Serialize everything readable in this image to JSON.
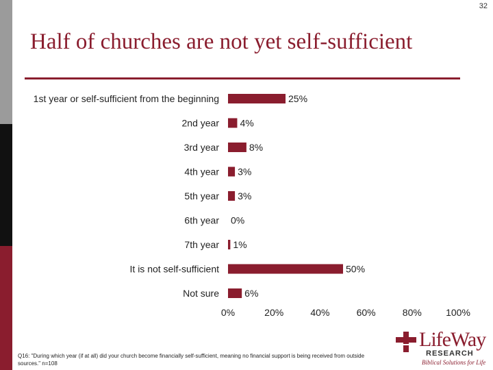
{
  "page_number": "32",
  "title": "Half of churches are not yet self-sufficient",
  "chart_data": {
    "type": "bar",
    "orientation": "horizontal",
    "title": "Half of churches are not yet self-sufficient",
    "categories": [
      "1st year or self-sufficient from the beginning",
      "2nd year",
      "3rd year",
      "4th year",
      "5th year",
      "6th year",
      "7th year",
      "It is not self-sufficient",
      "Not sure"
    ],
    "values": [
      25,
      4,
      8,
      3,
      3,
      0,
      1,
      50,
      6
    ],
    "value_labels": [
      "25%",
      "4%",
      "8%",
      "3%",
      "3%",
      "0%",
      "1%",
      "50%",
      "6%"
    ],
    "xlim": [
      0,
      100
    ],
    "x_ticks": [
      "0%",
      "20%",
      "40%",
      "60%",
      "80%",
      "100%"
    ],
    "xlabel": "",
    "ylabel": "",
    "grid": false,
    "color": "#8a1d2e"
  },
  "footnote": "Q16: \"During which year (if at all) did your church become financially self-sufficient, meaning no financial support is being received from outside sources.\" n=108",
  "logo": {
    "name": "LifeWay",
    "sub": "RESEARCH",
    "tagline": "Biblical Solutions for Life"
  }
}
